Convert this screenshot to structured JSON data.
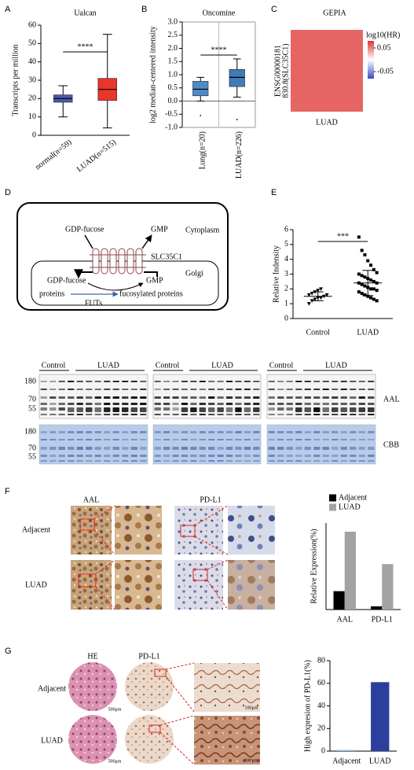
{
  "figure": {
    "letters": [
      "A",
      "B",
      "C",
      "D",
      "E",
      "F",
      "G"
    ],
    "diagram": {
      "substrate_out": "GDP-fucose",
      "product_out": "GMP",
      "compartment_out": "Cytoplasm",
      "transporter": "SLC35C1",
      "compartment_in": "Golgi",
      "substrate_in": "GDP-fucose",
      "product_in": "GMP",
      "acceptor": "proteins",
      "product": "fucosylated proteins",
      "enzyme": "FUTs"
    },
    "blots": {
      "groups": [
        {
          "control": "Control",
          "luad": "LUAD"
        },
        {
          "control": "Control",
          "luad": "LUAD"
        },
        {
          "control": "Control",
          "luad": "LUAD"
        }
      ],
      "markers_top": [
        "180",
        "70",
        "55"
      ],
      "markers_bottom": [
        "180",
        "70",
        "55"
      ],
      "labels": [
        "AAL",
        "CBB"
      ]
    },
    "ihc_f": {
      "columns": [
        "AAL",
        "PD-L1"
      ],
      "rows": [
        "Adjacent",
        "LUAD"
      ]
    },
    "ihc_g": {
      "columns": [
        "HE",
        "PD-L1"
      ],
      "rows": [
        "Adjacent",
        "LUAD"
      ],
      "scale_bars": [
        "500μm",
        "100μm",
        "500μm",
        "100μm"
      ]
    }
  },
  "chart_data": [
    {
      "type": "box",
      "title": "Ualcan",
      "ylabel": "Transcripts per million",
      "categories": [
        "normal(n=59)",
        "LUAD(n=515)"
      ],
      "boxes": [
        {
          "min": 10,
          "q1": 18,
          "median": 20,
          "q3": 22,
          "max": 27,
          "outliers": [],
          "color": "#4a5aab"
        },
        {
          "min": 4,
          "q1": 19,
          "median": 25,
          "q3": 31,
          "max": 55,
          "outliers": [],
          "color": "#e8372a"
        }
      ],
      "ylim": [
        0,
        60
      ],
      "yticks": [
        0,
        10,
        20,
        30,
        40,
        50,
        60
      ],
      "significance": "****"
    },
    {
      "type": "box",
      "title": "Oncomine",
      "ylabel": "log2 median-centered intensity",
      "categories": [
        "Lung(n=20)",
        "LUAD(n=226)"
      ],
      "boxes": [
        {
          "min": 0,
          "q1": 0.2,
          "median": 0.45,
          "q3": 0.75,
          "max": 0.9,
          "outliers": [
            -0.55
          ],
          "color": "#4f8cc4"
        },
        {
          "min": 0.15,
          "q1": 0.55,
          "median": 0.9,
          "q3": 1.2,
          "max": 1.6,
          "outliers": [
            -0.7
          ],
          "color": "#3f7cb8"
        }
      ],
      "ylim": [
        -1,
        3
      ],
      "yticks": [
        {
          "value": -1,
          "label": "-1.0"
        },
        {
          "value": -0.5,
          "label": "-0.5"
        },
        {
          "value": 0,
          "label": "0.0"
        },
        {
          "value": 0.5,
          "label": "0.5"
        },
        {
          "value": 1,
          "label": "1.0"
        },
        {
          "value": 1.5,
          "label": "1.5"
        },
        {
          "value": 2,
          "label": "2.0"
        },
        {
          "value": 2.5,
          "label": "2.5"
        },
        {
          "value": 3,
          "label": "3.0"
        }
      ],
      "hline": 0,
      "significance": "****"
    },
    {
      "type": "heatmap",
      "title": "GEPIA",
      "row_label_lines": [
        "ENSG00000181",
        "830.8(SLC35C1)"
      ],
      "categories": [
        "LUAD"
      ],
      "values": [
        [
          0.06
        ]
      ],
      "legend_title": "log10(HR)",
      "clim": [
        -0.08,
        0.08
      ],
      "colorbar_ticks": [
        0.05,
        -0.05
      ]
    },
    {
      "type": "scatter",
      "ylabel": "Relative Indensity",
      "categories": [
        "Control",
        "LUAD"
      ],
      "points": [
        [
          1.0,
          1.2,
          1.3,
          1.4,
          1.4,
          1.5,
          1.6,
          1.6,
          1.7,
          1.8,
          1.9,
          2.0
        ],
        [
          5.5,
          4.6,
          4.3,
          3.9,
          3.6,
          3.3,
          3.1,
          3.0,
          2.9,
          2.8,
          2.7,
          2.6,
          2.5,
          2.4,
          2.4,
          2.3,
          2.2,
          2.1,
          2.0,
          2.0,
          1.9,
          1.8,
          1.7,
          1.6,
          1.5,
          1.4,
          1.3,
          1.2
        ]
      ],
      "means": [
        1.5,
        2.4
      ],
      "errors": [
        0.3,
        0.85
      ],
      "ylim": [
        0,
        6
      ],
      "yticks": [
        0,
        1,
        2,
        3,
        4,
        5,
        6
      ],
      "significance": "***"
    },
    {
      "type": "bar",
      "ylabel": "Relative Expression(%)",
      "categories": [
        "AAL",
        "PD-L1"
      ],
      "series": [
        {
          "name": "Adjacent",
          "color": "#000000",
          "values": [
            17,
            3
          ]
        },
        {
          "name": "LUAD",
          "color": "#a3a3a3",
          "values": [
            72,
            42
          ]
        }
      ],
      "ylim": [
        0,
        80
      ]
    },
    {
      "type": "bar",
      "ylabel": "High expresion of PD-L1(%)",
      "categories": [
        "Adjacent",
        "LUAD"
      ],
      "values": [
        1,
        61
      ],
      "colors": [
        "#8fb4e0",
        "#2b3f9e"
      ],
      "ylim": [
        0,
        80
      ],
      "yticks": [
        0,
        20,
        40,
        60,
        80
      ]
    }
  ]
}
